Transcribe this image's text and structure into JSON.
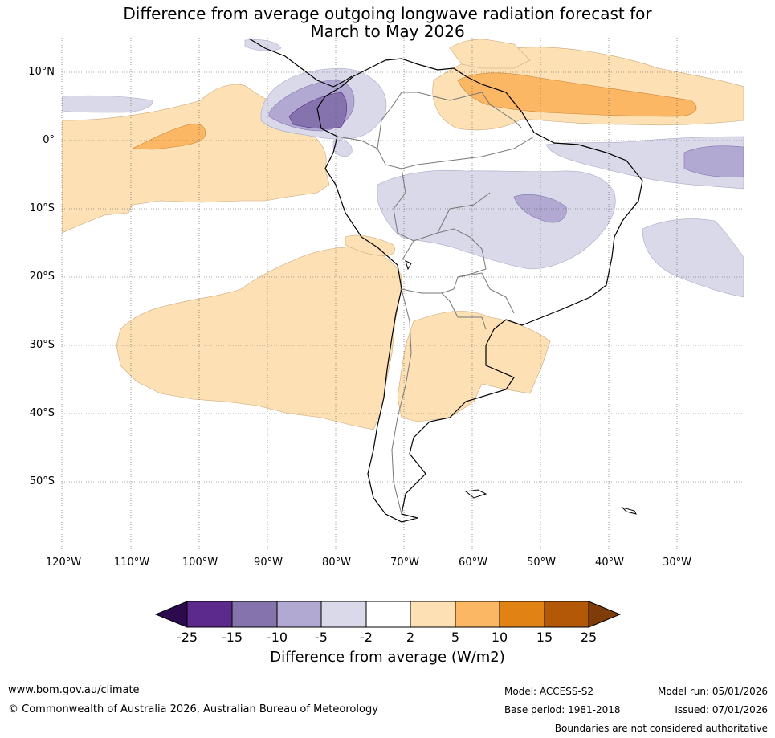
{
  "title": {
    "line1": "Difference from average outgoing longwave radiation forecast for",
    "line2": "March to May 2026"
  },
  "map": {
    "lat_labels": [
      "10°N",
      "0°",
      "10°S",
      "20°S",
      "30°S",
      "40°S",
      "50°S"
    ],
    "lon_labels": [
      "120°W",
      "110°W",
      "100°W",
      "90°W",
      "80°W",
      "70°W",
      "60°W",
      "50°W",
      "40°W",
      "30°W"
    ]
  },
  "colorbar": {
    "colors": [
      "#2d0a4e",
      "#5b2a8c",
      "#8473ad",
      "#b1a9d1",
      "#d9d9ea",
      "#ffffff",
      "#fde0b4",
      "#fbb763",
      "#e08214",
      "#b35806",
      "#7f3b08"
    ],
    "ticks": [
      "-25",
      "-15",
      "-10",
      "-5",
      "-2",
      "2",
      "5",
      "10",
      "15",
      "25"
    ],
    "label": "Difference from average (W/m2)"
  },
  "footer": {
    "website": "www.bom.gov.au/climate",
    "copyright": "© Commonwealth of Australia 2026, Australian Bureau of Meteorology",
    "model": "Model: ACCESS-S2",
    "base_period": "Base period: 1981-2018",
    "model_run": "Model run: 05/01/2026",
    "issued": "Issued: 07/01/2026",
    "disclaimer": "Boundaries are not considered authoritative"
  }
}
